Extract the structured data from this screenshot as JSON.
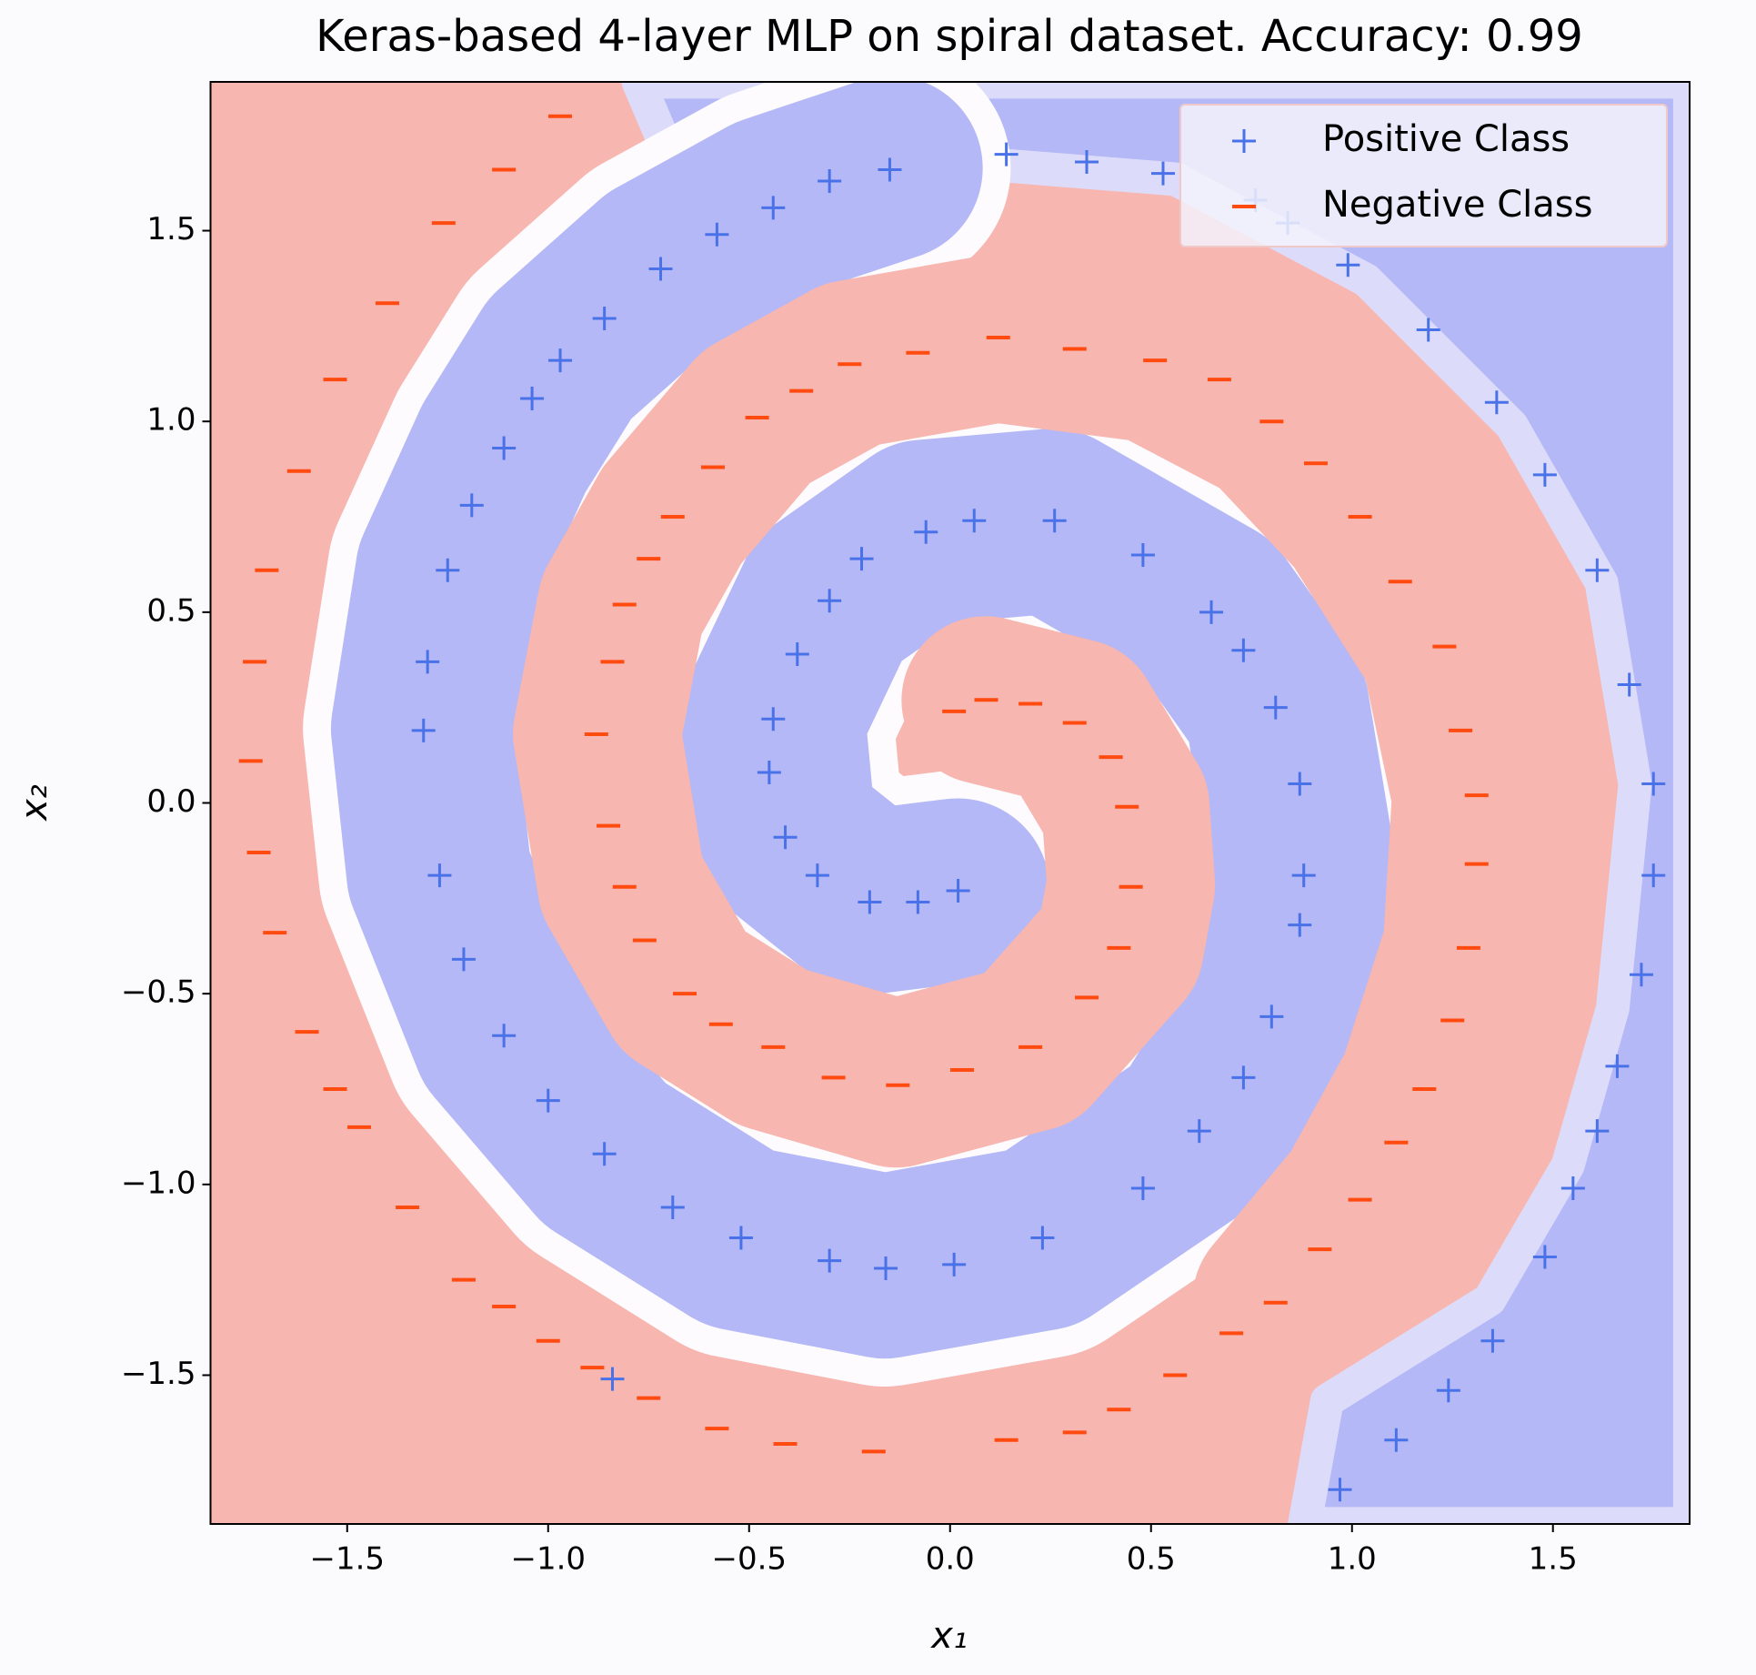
{
  "chart_data": {
    "type": "scatter",
    "title": "Keras-based 4-layer MLP on spiral dataset. Accuracy: 0.99",
    "x_label": "x₁",
    "y_label": "x₂",
    "xlim": [
      -1.84,
      1.84
    ],
    "ylim": [
      -1.89,
      1.89
    ],
    "xticks": [
      {
        "value": -1.5,
        "label": "−1.5"
      },
      {
        "value": -1.0,
        "label": "−1.0"
      },
      {
        "value": -0.5,
        "label": "−0.5"
      },
      {
        "value": 0,
        "label": "0.0"
      },
      {
        "value": 0.5,
        "label": "0.5"
      },
      {
        "value": 1.0,
        "label": "1.0"
      },
      {
        "value": 1.5,
        "label": "1.5"
      }
    ],
    "yticks": [
      {
        "value": -1.5,
        "label": "−1.5"
      },
      {
        "value": -1.0,
        "label": "−1.0"
      },
      {
        "value": -0.5,
        "label": "−0.5"
      },
      {
        "value": 0,
        "label": "0.0"
      },
      {
        "value": 0.5,
        "label": "0.5"
      },
      {
        "value": 1.0,
        "label": "1.0"
      },
      {
        "value": 1.5,
        "label": "1.5"
      }
    ],
    "legend": "upper right",
    "series": [
      {
        "name": "Positive Class",
        "color": "#4a72e8",
        "marker": "plus",
        "x": [
          0.97,
          1.11,
          1.24,
          1.35,
          1.48,
          1.55,
          1.61,
          1.66,
          1.72,
          1.75,
          1.75,
          1.69,
          1.61,
          1.48,
          1.36,
          1.19,
          0.99,
          0.84,
          0.76,
          0.53,
          0.34,
          0.14,
          -0.15,
          -0.3,
          -0.44,
          -0.58,
          -0.72,
          -0.86,
          -0.97,
          -1.04,
          -1.11,
          -1.19,
          -1.25,
          -1.3,
          -1.31,
          -1.27,
          -1.21,
          -1.11,
          -1.0,
          -0.86,
          -0.69,
          -0.52,
          -0.3,
          -0.16,
          0.01,
          0.23,
          0.48,
          0.62,
          0.73,
          0.8,
          0.87,
          0.88,
          0.87,
          0.81,
          0.73,
          0.65,
          0.48,
          0.26,
          0.06,
          -0.06,
          -0.22,
          -0.3,
          -0.38,
          -0.44,
          -0.45,
          -0.41,
          -0.33,
          -0.2,
          -0.08,
          0.02,
          -0.84
        ],
        "y": [
          -1.8,
          -1.67,
          -1.54,
          -1.41,
          -1.19,
          -1.01,
          -0.86,
          -0.69,
          -0.45,
          -0.19,
          0.05,
          0.31,
          0.61,
          0.86,
          1.05,
          1.24,
          1.41,
          1.52,
          1.58,
          1.65,
          1.68,
          1.7,
          1.66,
          1.63,
          1.56,
          1.49,
          1.4,
          1.27,
          1.16,
          1.06,
          0.93,
          0.78,
          0.61,
          0.37,
          0.19,
          -0.19,
          -0.41,
          -0.61,
          -0.78,
          -0.92,
          -1.06,
          -1.14,
          -1.2,
          -1.22,
          -1.21,
          -1.14,
          -1.01,
          -0.86,
          -0.72,
          -0.56,
          -0.32,
          -0.19,
          0.05,
          0.25,
          0.4,
          0.5,
          0.65,
          0.74,
          0.74,
          0.71,
          0.64,
          0.53,
          0.39,
          0.22,
          0.08,
          -0.09,
          -0.19,
          -0.26,
          -0.26,
          -0.23,
          -1.51
        ]
      },
      {
        "name": "Negative Class",
        "color": "#ff4a10",
        "marker": "minus",
        "x": [
          -0.97,
          -1.11,
          -1.26,
          -1.4,
          -1.53,
          -1.62,
          -1.7,
          -1.73,
          -1.74,
          -1.72,
          -1.68,
          -1.6,
          -1.53,
          -1.47,
          -1.35,
          -1.21,
          -1.11,
          -1.0,
          -0.89,
          -0.75,
          -0.58,
          -0.41,
          -0.19,
          0.14,
          0.31,
          0.42,
          0.56,
          0.7,
          0.81,
          0.92,
          1.02,
          1.11,
          1.18,
          1.25,
          1.29,
          1.31,
          1.31,
          1.27,
          1.23,
          1.12,
          1.02,
          0.91,
          0.8,
          0.67,
          0.51,
          0.31,
          0.12,
          -0.08,
          -0.25,
          -0.37,
          -0.48,
          -0.59,
          -0.69,
          -0.75,
          -0.81,
          -0.84,
          -0.88,
          -0.85,
          -0.81,
          -0.76,
          -0.66,
          -0.57,
          -0.44,
          -0.29,
          -0.13,
          0.03,
          0.2,
          0.34,
          0.42,
          0.45,
          0.44,
          0.4,
          0.31,
          0.2,
          0.09,
          0.01
        ],
        "y": [
          1.8,
          1.66,
          1.52,
          1.31,
          1.11,
          0.87,
          0.61,
          0.37,
          0.11,
          -0.13,
          -0.34,
          -0.6,
          -0.75,
          -0.85,
          -1.06,
          -1.25,
          -1.32,
          -1.41,
          -1.48,
          -1.56,
          -1.64,
          -1.68,
          -1.7,
          -1.67,
          -1.65,
          -1.59,
          -1.5,
          -1.39,
          -1.31,
          -1.17,
          -1.04,
          -0.89,
          -0.75,
          -0.57,
          -0.38,
          -0.16,
          0.02,
          0.19,
          0.41,
          0.58,
          0.75,
          0.89,
          1.0,
          1.11,
          1.16,
          1.19,
          1.22,
          1.18,
          1.15,
          1.08,
          1.01,
          0.88,
          0.75,
          0.64,
          0.52,
          0.37,
          0.18,
          -0.06,
          -0.22,
          -0.36,
          -0.5,
          -0.58,
          -0.64,
          -0.72,
          -0.74,
          -0.7,
          -0.64,
          -0.51,
          -0.38,
          -0.22,
          -0.01,
          0.12,
          0.21,
          0.26,
          0.27,
          0.24
        ]
      }
    ]
  }
}
